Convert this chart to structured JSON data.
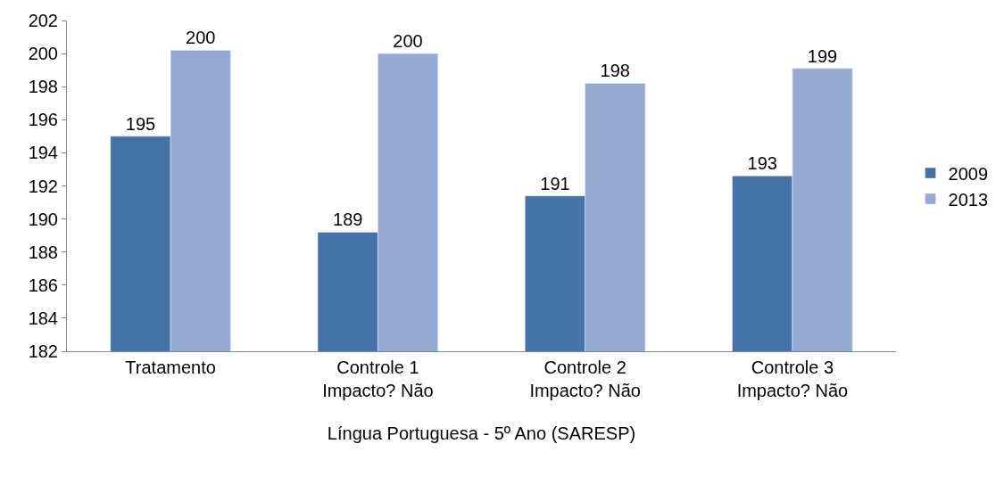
{
  "chart_data": {
    "type": "bar",
    "categories": [
      "Tratamento",
      "Controle 1\nImpacto? Não",
      "Controle 2\nImpacto? Não",
      "Controle 3\nImpacto? Não"
    ],
    "xlabel": "Língua Portuguesa - 5º Ano (SARESP)",
    "series": [
      {
        "name": "2009",
        "color": "#4573a7",
        "values": [
          195.0,
          189.2,
          191.4,
          192.6
        ],
        "value_labels": [
          "195",
          "189",
          "191",
          "193"
        ]
      },
      {
        "name": "2013",
        "color": "#95a9d2",
        "values": [
          200.2,
          200.0,
          198.2,
          199.1
        ],
        "value_labels": [
          "200",
          "200",
          "198",
          "199"
        ]
      }
    ],
    "ylim": [
      182,
      202
    ],
    "yticks": [
      182,
      184,
      186,
      188,
      190,
      192,
      194,
      196,
      198,
      200,
      202
    ],
    "grid": false,
    "legend": "right"
  }
}
